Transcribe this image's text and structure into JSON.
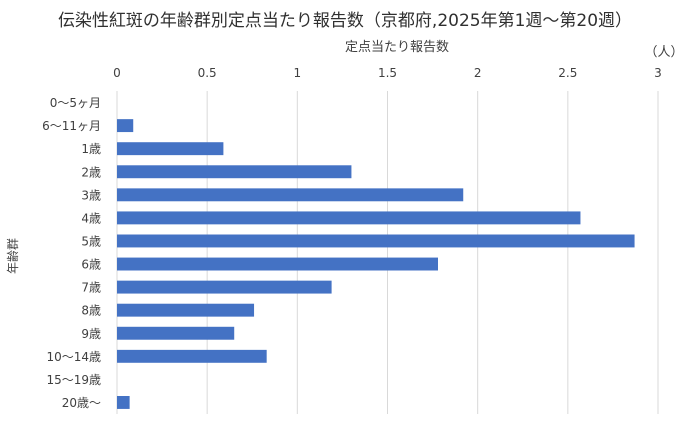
{
  "chart_data": {
    "type": "bar",
    "orientation": "horizontal",
    "title": "伝染性紅斑の年齢群別定点当たり報告数（京都府,2025年第1週～第20週）",
    "xlabel": "定点当たり報告数",
    "ylabel": "年齢群",
    "unit": "（人）",
    "xlim": [
      0,
      3
    ],
    "x_ticks": [
      "0",
      "0.5",
      "1",
      "1.5",
      "2",
      "2.5",
      "3"
    ],
    "x_axis_position": "top",
    "grid": "vertical",
    "categories": [
      "0～5ヶ月",
      "6～11ヶ月",
      "1歳",
      "2歳",
      "3歳",
      "4歳",
      "5歳",
      "6歳",
      "7歳",
      "8歳",
      "9歳",
      "10～14歳",
      "15～19歳",
      "20歳～"
    ],
    "values": [
      0,
      0.09,
      0.59,
      1.3,
      1.92,
      2.57,
      2.87,
      1.78,
      1.19,
      0.76,
      0.65,
      0.83,
      0,
      0.07
    ],
    "bar_color": "#4472C4",
    "grid_color": "#D9D9D9"
  }
}
